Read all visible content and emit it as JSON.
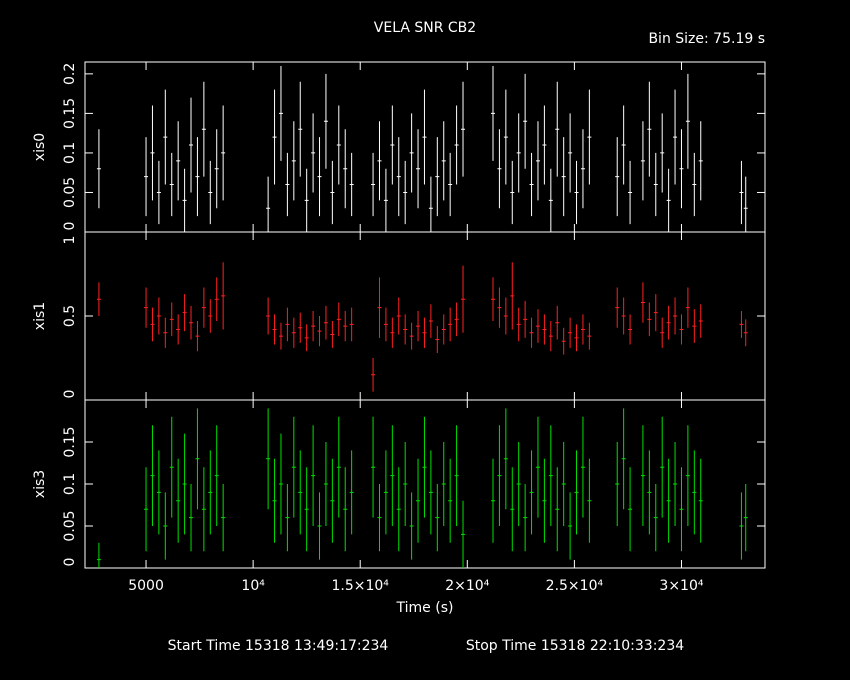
{
  "chart_data": {
    "type": "errorbar",
    "title": "VELA SNR CB2",
    "subtitle": "Bin Size: 75.19 s",
    "xlabel": "Time (s)",
    "start_time": "Start Time 15318 13:49:17:234",
    "stop_time": "Stop Time 15318 22:10:33:234",
    "xlim": [
      2150,
      33900
    ],
    "xticks": [
      5000,
      {
        "value": 10000,
        "label": "10⁴"
      },
      {
        "value": 15000,
        "label": "1.5×10⁴"
      },
      {
        "value": 20000,
        "label": "2×10⁴"
      },
      {
        "value": 25000,
        "label": "2.5×10⁴"
      },
      {
        "value": 30000,
        "label": "3×10⁴"
      }
    ],
    "x": [
      2800,
      5000,
      5300,
      5600,
      5900,
      6200,
      6500,
      6800,
      7100,
      7400,
      7700,
      8000,
      8300,
      8600,
      10700,
      11000,
      11300,
      11600,
      11900,
      12200,
      12500,
      12800,
      13100,
      13400,
      13700,
      14000,
      14300,
      14600,
      15600,
      15900,
      16200,
      16500,
      16800,
      17100,
      17400,
      17700,
      18000,
      18300,
      18600,
      18900,
      19200,
      19500,
      19800,
      21200,
      21500,
      21800,
      22100,
      22400,
      22700,
      23000,
      23300,
      23600,
      23900,
      24200,
      24500,
      24800,
      25100,
      25400,
      25700,
      27000,
      27300,
      27600,
      28200,
      28500,
      28800,
      29100,
      29400,
      29700,
      30000,
      30300,
      30600,
      30900,
      32800,
      33000
    ],
    "panels": [
      {
        "ylabel": "xis0",
        "color": "#ffffff",
        "ylim": [
          0,
          0.215
        ],
        "yticks": [
          0,
          0.05,
          0.1,
          0.15,
          0.2
        ],
        "values": [
          0.08,
          0.07,
          0.1,
          0.05,
          0.12,
          0.06,
          0.09,
          0.04,
          0.11,
          0.07,
          0.13,
          0.05,
          0.08,
          0.1,
          0.03,
          0.12,
          0.15,
          0.06,
          0.09,
          0.13,
          0.04,
          0.1,
          0.07,
          0.14,
          0.05,
          0.11,
          0.08,
          0.06,
          0.06,
          0.09,
          0.04,
          0.11,
          0.07,
          0.05,
          0.1,
          0.08,
          0.12,
          0.03,
          0.07,
          0.09,
          0.06,
          0.11,
          0.13,
          0.15,
          0.08,
          0.12,
          0.05,
          0.1,
          0.14,
          0.06,
          0.09,
          0.11,
          0.04,
          0.13,
          0.07,
          0.1,
          0.05,
          0.08,
          0.12,
          0.07,
          0.11,
          0.05,
          0.09,
          0.13,
          0.06,
          0.1,
          0.04,
          0.12,
          0.08,
          0.14,
          0.06,
          0.09,
          0.05,
          0.03
        ],
        "errors": [
          0.05,
          0.05,
          0.06,
          0.04,
          0.06,
          0.04,
          0.05,
          0.04,
          0.06,
          0.05,
          0.06,
          0.04,
          0.05,
          0.06,
          0.04,
          0.06,
          0.06,
          0.04,
          0.05,
          0.06,
          0.04,
          0.05,
          0.05,
          0.06,
          0.04,
          0.05,
          0.05,
          0.04,
          0.04,
          0.05,
          0.04,
          0.05,
          0.05,
          0.04,
          0.05,
          0.05,
          0.06,
          0.04,
          0.05,
          0.05,
          0.04,
          0.05,
          0.06,
          0.06,
          0.05,
          0.06,
          0.04,
          0.05,
          0.06,
          0.04,
          0.05,
          0.05,
          0.04,
          0.06,
          0.05,
          0.05,
          0.04,
          0.05,
          0.06,
          0.05,
          0.05,
          0.04,
          0.05,
          0.06,
          0.04,
          0.05,
          0.04,
          0.06,
          0.05,
          0.06,
          0.04,
          0.05,
          0.04,
          0.04
        ]
      },
      {
        "ylabel": "xis1",
        "color": "#ff2020",
        "ylim": [
          0,
          1
        ],
        "yticks": [
          0,
          0.5,
          1
        ],
        "values": [
          0.6,
          0.55,
          0.45,
          0.5,
          0.4,
          0.48,
          0.42,
          0.52,
          0.46,
          0.38,
          0.55,
          0.5,
          0.6,
          0.62,
          0.5,
          0.42,
          0.38,
          0.45,
          0.4,
          0.43,
          0.37,
          0.44,
          0.41,
          0.46,
          0.39,
          0.48,
          0.44,
          0.45,
          0.15,
          0.55,
          0.45,
          0.4,
          0.5,
          0.42,
          0.38,
          0.44,
          0.4,
          0.47,
          0.36,
          0.42,
          0.45,
          0.48,
          0.6,
          0.6,
          0.55,
          0.5,
          0.62,
          0.45,
          0.48,
          0.4,
          0.44,
          0.42,
          0.38,
          0.46,
          0.35,
          0.4,
          0.37,
          0.42,
          0.38,
          0.55,
          0.5,
          0.42,
          0.58,
          0.48,
          0.52,
          0.4,
          0.46,
          0.5,
          0.42,
          0.55,
          0.44,
          0.47,
          0.45,
          0.4
        ],
        "errors": [
          0.1,
          0.12,
          0.1,
          0.11,
          0.09,
          0.1,
          0.09,
          0.11,
          0.1,
          0.09,
          0.12,
          0.1,
          0.13,
          0.2,
          0.11,
          0.09,
          0.08,
          0.1,
          0.09,
          0.09,
          0.08,
          0.09,
          0.09,
          0.1,
          0.08,
          0.1,
          0.09,
          0.1,
          0.1,
          0.18,
          0.1,
          0.09,
          0.11,
          0.09,
          0.08,
          0.09,
          0.09,
          0.1,
          0.08,
          0.09,
          0.1,
          0.1,
          0.2,
          0.13,
          0.12,
          0.11,
          0.2,
          0.1,
          0.11,
          0.09,
          0.1,
          0.09,
          0.09,
          0.1,
          0.08,
          0.09,
          0.08,
          0.09,
          0.08,
          0.12,
          0.11,
          0.09,
          0.12,
          0.1,
          0.11,
          0.09,
          0.1,
          0.11,
          0.09,
          0.12,
          0.1,
          0.1,
          0.08,
          0.08
        ]
      },
      {
        "ylabel": "xis3",
        "color": "#00e000",
        "ylim": [
          0,
          0.2
        ],
        "yticks": [
          0,
          0.05,
          0.1,
          0.15
        ],
        "values": [
          0.01,
          0.07,
          0.11,
          0.09,
          0.05,
          0.12,
          0.08,
          0.1,
          0.06,
          0.13,
          0.07,
          0.09,
          0.11,
          0.06,
          0.13,
          0.08,
          0.1,
          0.06,
          0.12,
          0.09,
          0.07,
          0.11,
          0.05,
          0.1,
          0.08,
          0.12,
          0.07,
          0.09,
          0.12,
          0.06,
          0.09,
          0.11,
          0.07,
          0.1,
          0.05,
          0.08,
          0.12,
          0.09,
          0.06,
          0.1,
          0.08,
          0.11,
          0.04,
          0.08,
          0.11,
          0.13,
          0.07,
          0.1,
          0.06,
          0.09,
          0.12,
          0.08,
          0.11,
          0.07,
          0.1,
          0.05,
          0.09,
          0.12,
          0.08,
          0.1,
          0.13,
          0.07,
          0.11,
          0.09,
          0.06,
          0.12,
          0.08,
          0.1,
          0.07,
          0.11,
          0.09,
          0.08,
          0.05,
          0.06
        ],
        "errors": [
          0.02,
          0.05,
          0.06,
          0.05,
          0.04,
          0.06,
          0.05,
          0.06,
          0.04,
          0.06,
          0.05,
          0.05,
          0.06,
          0.04,
          0.06,
          0.05,
          0.06,
          0.04,
          0.06,
          0.05,
          0.05,
          0.06,
          0.04,
          0.05,
          0.05,
          0.06,
          0.05,
          0.05,
          0.06,
          0.04,
          0.05,
          0.06,
          0.05,
          0.05,
          0.04,
          0.05,
          0.06,
          0.05,
          0.04,
          0.05,
          0.05,
          0.06,
          0.04,
          0.05,
          0.06,
          0.06,
          0.05,
          0.05,
          0.04,
          0.05,
          0.06,
          0.05,
          0.06,
          0.05,
          0.05,
          0.04,
          0.05,
          0.06,
          0.05,
          0.05,
          0.06,
          0.05,
          0.06,
          0.05,
          0.04,
          0.06,
          0.05,
          0.05,
          0.05,
          0.06,
          0.05,
          0.05,
          0.04,
          0.04
        ]
      }
    ]
  }
}
